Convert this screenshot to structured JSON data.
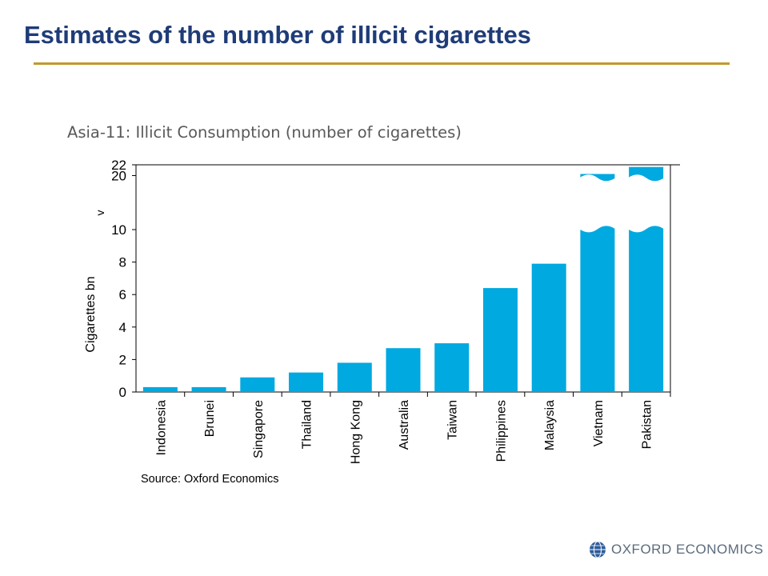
{
  "slide": {
    "title": "Estimates of the number of illicit cigarettes"
  },
  "chart_data": {
    "type": "bar",
    "title": "Asia-11: Illicit Consumption (number of cigarettes)",
    "ylabel": "Cigarettes bn",
    "xlabel": "",
    "source": "Source: Oxford Economics",
    "categories": [
      "Indonesia",
      "Brunei",
      "Singapore",
      "Thailand",
      "Hong Kong",
      "Australia",
      "Taiwan",
      "Philippines",
      "Malaysia",
      "Vietnam",
      "Pakistan"
    ],
    "values": [
      0.3,
      0.3,
      0.9,
      1.2,
      1.8,
      2.7,
      3.0,
      6.4,
      7.9,
      20.3,
      21.6
    ],
    "y_ticks": [
      "0",
      "2",
      "4",
      "6",
      "8",
      "10",
      "20",
      "22"
    ],
    "axis_break_marker": "v",
    "ylim": [
      0,
      22
    ],
    "broken_axis": true,
    "grid": false,
    "legend": "none",
    "bar_color": "#00a9e0"
  },
  "logo": {
    "text": "OXFORD ECONOMICS",
    "icon": "globe-icon"
  }
}
